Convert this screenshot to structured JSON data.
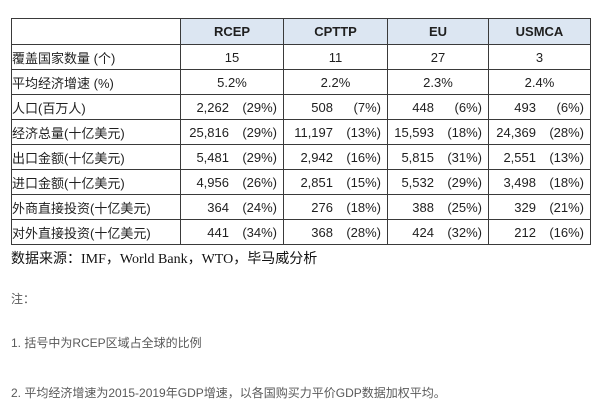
{
  "colors": {
    "header_bg": "#dce6f2",
    "border": "#3a3a3a",
    "text": "#1f1f1f",
    "note_text": "#595959"
  },
  "table": {
    "corner_label": "",
    "columns": [
      "RCEP",
      "CPTTP",
      "EU",
      "USMCA"
    ],
    "rows": [
      {
        "label": "覆盖国家数量 (个)",
        "center": true,
        "values": [
          "15",
          "11",
          "27",
          "3"
        ]
      },
      {
        "label": "平均经济增速 (%)",
        "center": true,
        "values": [
          "5.2%",
          "2.2%",
          "2.3%",
          "2.4%"
        ]
      },
      {
        "label": "人口(百万人)",
        "center": false,
        "values": [
          {
            "value": "2,262",
            "share": "(29%)"
          },
          {
            "value": "508",
            "share": "(7%)"
          },
          {
            "value": "448",
            "share": "(6%)"
          },
          {
            "value": "493",
            "share": "(6%)"
          }
        ]
      },
      {
        "label": "经济总量(十亿美元)",
        "center": false,
        "values": [
          {
            "value": "25,816",
            "share": "(29%)"
          },
          {
            "value": "11,197",
            "share": "(13%)"
          },
          {
            "value": "15,593",
            "share": "(18%)"
          },
          {
            "value": "24,369",
            "share": "(28%)"
          }
        ]
      },
      {
        "label": "出口金额(十亿美元)",
        "center": false,
        "values": [
          {
            "value": "5,481",
            "share": "(29%)"
          },
          {
            "value": "2,942",
            "share": "(16%)"
          },
          {
            "value": "5,815",
            "share": "(31%)"
          },
          {
            "value": "2,551",
            "share": "(13%)"
          }
        ]
      },
      {
        "label": "进口金额(十亿美元)",
        "center": false,
        "values": [
          {
            "value": "4,956",
            "share": "(26%)"
          },
          {
            "value": "2,851",
            "share": "(15%)"
          },
          {
            "value": "5,532",
            "share": "(29%)"
          },
          {
            "value": "3,498",
            "share": "(18%)"
          }
        ]
      },
      {
        "label": "外商直接投资(十亿美元)",
        "center": false,
        "values": [
          {
            "value": "364",
            "share": "(24%)"
          },
          {
            "value": "276",
            "share": "(18%)"
          },
          {
            "value": "388",
            "share": "(25%)"
          },
          {
            "value": "329",
            "share": "(21%)"
          }
        ]
      },
      {
        "label": "对外直接投资(十亿美元)",
        "center": false,
        "values": [
          {
            "value": "441",
            "share": "(34%)"
          },
          {
            "value": "368",
            "share": "(28%)"
          },
          {
            "value": "424",
            "share": "(32%)"
          },
          {
            "value": "212",
            "share": "(16%)"
          }
        ]
      }
    ]
  },
  "source_line": "数据来源：IMF，World Bank，WTO，毕马威分析",
  "notes": {
    "label": "注：",
    "items": [
      "1. 括号中为RCEP区域占全球的比例",
      "2. 平均经济增速为2015-2019年GDP增速，以各国购买力平价GDP数据加权平均。"
    ]
  }
}
